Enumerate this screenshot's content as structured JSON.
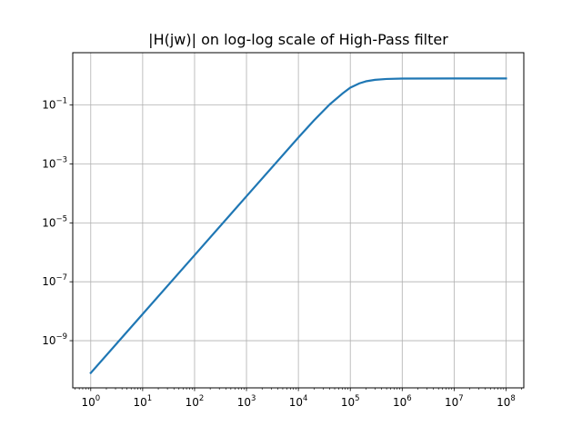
{
  "chart_data": {
    "type": "line",
    "title": "|H(jw)| on log-log scale of High-Pass filter",
    "xlabel": "",
    "ylabel": "",
    "x_scale": "log",
    "y_scale": "log",
    "xlim": [
      0.45,
      220000000
    ],
    "ylim": [
      2.5e-11,
      6
    ],
    "grid": true,
    "x_major_ticks": [
      1,
      10,
      100,
      1000,
      10000,
      100000,
      1000000,
      10000000,
      100000000
    ],
    "x_tick_labels": [
      {
        "base": "10",
        "exp": "0"
      },
      {
        "base": "10",
        "exp": "1"
      },
      {
        "base": "10",
        "exp": "2"
      },
      {
        "base": "10",
        "exp": "3"
      },
      {
        "base": "10",
        "exp": "4"
      },
      {
        "base": "10",
        "exp": "5"
      },
      {
        "base": "10",
        "exp": "6"
      },
      {
        "base": "10",
        "exp": "7"
      },
      {
        "base": "10",
        "exp": "8"
      }
    ],
    "y_major_ticks": [
      1e-09,
      1e-07,
      1e-05,
      0.001,
      0.1
    ],
    "y_tick_labels": [
      {
        "base": "10",
        "exp": "−9"
      },
      {
        "base": "10",
        "exp": "−7"
      },
      {
        "base": "10",
        "exp": "−5"
      },
      {
        "base": "10",
        "exp": "−3"
      },
      {
        "base": "10",
        "exp": "−1"
      }
    ],
    "series": [
      {
        "color": "#1f77b4",
        "x": [
          1,
          10,
          100,
          1000,
          10000,
          20000,
          40000,
          70000,
          100000,
          150000,
          200000,
          300000,
          500000,
          1000000,
          10000000,
          100000000
        ],
        "y": [
          8e-11,
          8e-09,
          8e-07,
          8e-05,
          0.0079,
          0.0303,
          0.1048,
          0.2428,
          0.3903,
          0.5459,
          0.64,
          0.72,
          0.7688,
          0.7922,
          0.8,
          0.8
        ]
      }
    ]
  }
}
